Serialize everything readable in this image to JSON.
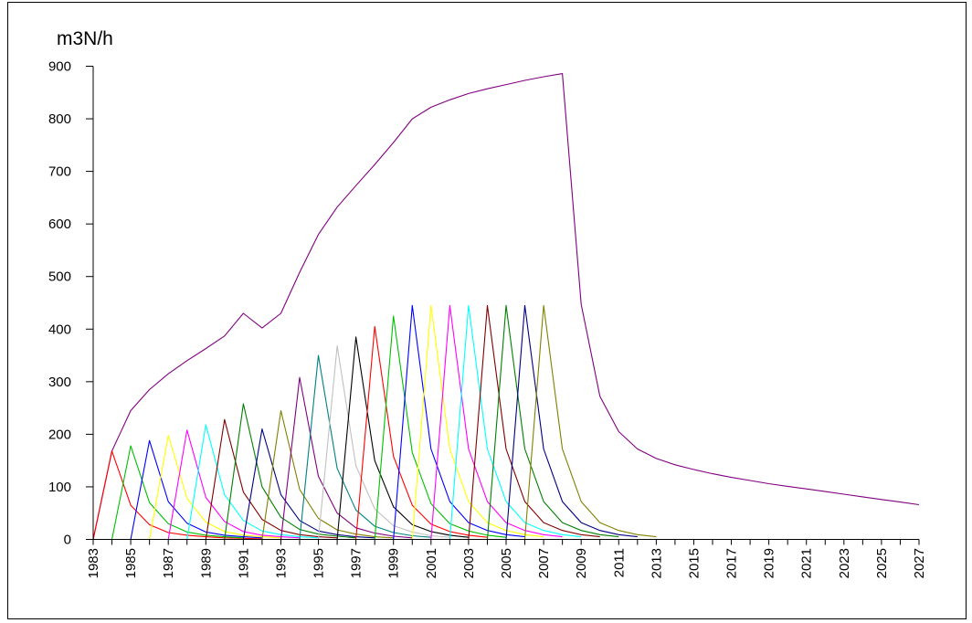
{
  "chart_data": {
    "type": "line",
    "title": "",
    "ylabel": "m3N/h",
    "xlabel": "",
    "ylim": [
      0,
      900
    ],
    "xlim": [
      1983,
      2027
    ],
    "y_ticks": [
      "0",
      "100",
      "200",
      "300",
      "400",
      "500",
      "600",
      "700",
      "800",
      "900"
    ],
    "x_tick_labels": [
      "1983",
      "1985",
      "1987",
      "1989",
      "1991",
      "1993",
      "1995",
      "1997",
      "1999",
      "2001",
      "2003",
      "2005",
      "2007",
      "2009",
      "2011",
      "2013",
      "2015",
      "2017",
      "2019",
      "2021",
      "2023",
      "2025",
      "2027"
    ],
    "grid": false,
    "legend": "none",
    "series": [
      {
        "color": "#800080",
        "x": [
          1983,
          1984,
          1985,
          1986,
          1987,
          1988,
          1989,
          1990,
          1991,
          1992,
          1993,
          1994,
          1995,
          1996,
          1997,
          1998,
          1999,
          2000,
          2001,
          2002,
          2003,
          2004,
          2005,
          2006,
          2007,
          2008,
          2009,
          2010,
          2011,
          2012,
          2013,
          2014,
          2015,
          2016,
          2017,
          2018,
          2019,
          2020,
          2021,
          2022,
          2023,
          2024,
          2025,
          2026,
          2027
        ],
        "y": [
          0,
          168,
          245,
          285,
          315,
          340,
          363,
          387,
          430,
          402,
          430,
          508,
          580,
          632,
          673,
          713,
          755,
          800,
          822,
          836,
          848,
          857,
          865,
          873,
          880,
          886,
          447,
          272,
          205,
          172,
          154,
          142,
          133,
          125,
          118,
          112,
          106,
          101,
          96,
          91,
          86,
          81,
          76,
          71,
          66
        ]
      },
      {
        "color": "#ff0000",
        "x": [
          1983,
          1984,
          1985,
          1986,
          1987,
          1988,
          1989,
          1990,
          1991,
          1992
        ],
        "y": [
          0,
          168,
          65,
          28,
          13,
          8,
          5,
          3,
          2,
          1
        ]
      },
      {
        "color": "#00c000",
        "x": [
          1984,
          1985,
          1986,
          1987,
          1988,
          1989,
          1990,
          1991
        ],
        "y": [
          0,
          178,
          70,
          30,
          14,
          8,
          5,
          3
        ]
      },
      {
        "color": "#0000ff",
        "x": [
          1985,
          1986,
          1987,
          1988,
          1989,
          1990,
          1991,
          1992
        ],
        "y": [
          0,
          188,
          72,
          31,
          14,
          8,
          5,
          3
        ]
      },
      {
        "color": "#ffff00",
        "x": [
          1986,
          1987,
          1988,
          1989,
          1990,
          1991,
          1992,
          1993
        ],
        "y": [
          0,
          198,
          78,
          33,
          15,
          8,
          5,
          3
        ]
      },
      {
        "color": "#ff00ff",
        "x": [
          1987,
          1988,
          1989,
          1990,
          1991,
          1992,
          1993,
          1994
        ],
        "y": [
          0,
          208,
          80,
          34,
          15,
          8,
          5,
          3
        ]
      },
      {
        "color": "#00ffff",
        "x": [
          1988,
          1989,
          1990,
          1991,
          1992,
          1993,
          1994,
          1995
        ],
        "y": [
          0,
          218,
          85,
          36,
          16,
          9,
          5,
          3
        ]
      },
      {
        "color": "#800000",
        "x": [
          1989,
          1990,
          1991,
          1992,
          1993,
          1994,
          1995,
          1996
        ],
        "y": [
          0,
          228,
          90,
          38,
          17,
          9,
          5,
          3
        ]
      },
      {
        "color": "#008000",
        "x": [
          1990,
          1991,
          1992,
          1993,
          1994,
          1995,
          1996,
          1997
        ],
        "y": [
          0,
          258,
          100,
          42,
          19,
          10,
          6,
          3
        ]
      },
      {
        "color": "#000080",
        "x": [
          1991,
          1992,
          1993,
          1994,
          1995,
          1996,
          1997,
          1998
        ],
        "y": [
          0,
          210,
          85,
          36,
          16,
          9,
          5,
          3
        ]
      },
      {
        "color": "#808000",
        "x": [
          1992,
          1993,
          1994,
          1995,
          1996,
          1997,
          1998,
          1999
        ],
        "y": [
          0,
          245,
          95,
          40,
          18,
          10,
          5,
          3
        ]
      },
      {
        "color": "#800080",
        "x": [
          1993,
          1994,
          1995,
          1996,
          1997,
          1998,
          1999,
          2000
        ],
        "y": [
          0,
          308,
          120,
          50,
          22,
          12,
          6,
          3
        ]
      },
      {
        "color": "#008080",
        "x": [
          1994,
          1995,
          1996,
          1997,
          1998,
          1999,
          2000,
          2001
        ],
        "y": [
          0,
          350,
          135,
          56,
          25,
          13,
          7,
          4
        ]
      },
      {
        "color": "#c0c0c0",
        "x": [
          1995,
          1996,
          1997,
          1998,
          1999,
          2000,
          2001,
          2002
        ],
        "y": [
          0,
          368,
          140,
          58,
          26,
          14,
          7,
          4
        ]
      },
      {
        "color": "#000000",
        "x": [
          1996,
          1997,
          1998,
          1999,
          2000,
          2001,
          2002,
          2003
        ],
        "y": [
          0,
          385,
          150,
          62,
          28,
          15,
          8,
          4
        ]
      },
      {
        "color": "#ff0000",
        "x": [
          1997,
          1998,
          1999,
          2000,
          2001,
          2002,
          2003,
          2004
        ],
        "y": [
          0,
          405,
          158,
          65,
          29,
          15,
          8,
          4
        ]
      },
      {
        "color": "#00c000",
        "x": [
          1998,
          1999,
          2000,
          2001,
          2002,
          2003,
          2004,
          2005
        ],
        "y": [
          0,
          425,
          165,
          68,
          30,
          16,
          8,
          4
        ]
      },
      {
        "color": "#0000ff",
        "x": [
          1999,
          2000,
          2001,
          2002,
          2003,
          2004,
          2005,
          2006
        ],
        "y": [
          0,
          445,
          172,
          72,
          32,
          17,
          9,
          5
        ]
      },
      {
        "color": "#ffff00",
        "x": [
          2000,
          2001,
          2002,
          2003,
          2004,
          2005,
          2006,
          2007
        ],
        "y": [
          0,
          445,
          172,
          72,
          32,
          17,
          9,
          5
        ]
      },
      {
        "color": "#ff00ff",
        "x": [
          2001,
          2002,
          2003,
          2004,
          2005,
          2006,
          2007,
          2008
        ],
        "y": [
          0,
          445,
          172,
          72,
          32,
          17,
          9,
          5
        ]
      },
      {
        "color": "#00ffff",
        "x": [
          2002,
          2003,
          2004,
          2005,
          2006,
          2007,
          2008,
          2009
        ],
        "y": [
          0,
          445,
          172,
          72,
          32,
          17,
          9,
          5
        ]
      },
      {
        "color": "#800000",
        "x": [
          2003,
          2004,
          2005,
          2006,
          2007,
          2008,
          2009,
          2010
        ],
        "y": [
          0,
          445,
          172,
          72,
          32,
          17,
          9,
          5
        ]
      },
      {
        "color": "#008000",
        "x": [
          2004,
          2005,
          2006,
          2007,
          2008,
          2009,
          2010,
          2011
        ],
        "y": [
          0,
          445,
          172,
          72,
          32,
          17,
          9,
          5
        ]
      },
      {
        "color": "#000080",
        "x": [
          2005,
          2006,
          2007,
          2008,
          2009,
          2010,
          2011,
          2012
        ],
        "y": [
          0,
          445,
          172,
          72,
          32,
          17,
          9,
          5
        ]
      },
      {
        "color": "#808000",
        "x": [
          2006,
          2007,
          2008,
          2009,
          2010,
          2011,
          2012,
          2013
        ],
        "y": [
          0,
          445,
          172,
          72,
          32,
          17,
          9,
          5
        ]
      }
    ]
  }
}
